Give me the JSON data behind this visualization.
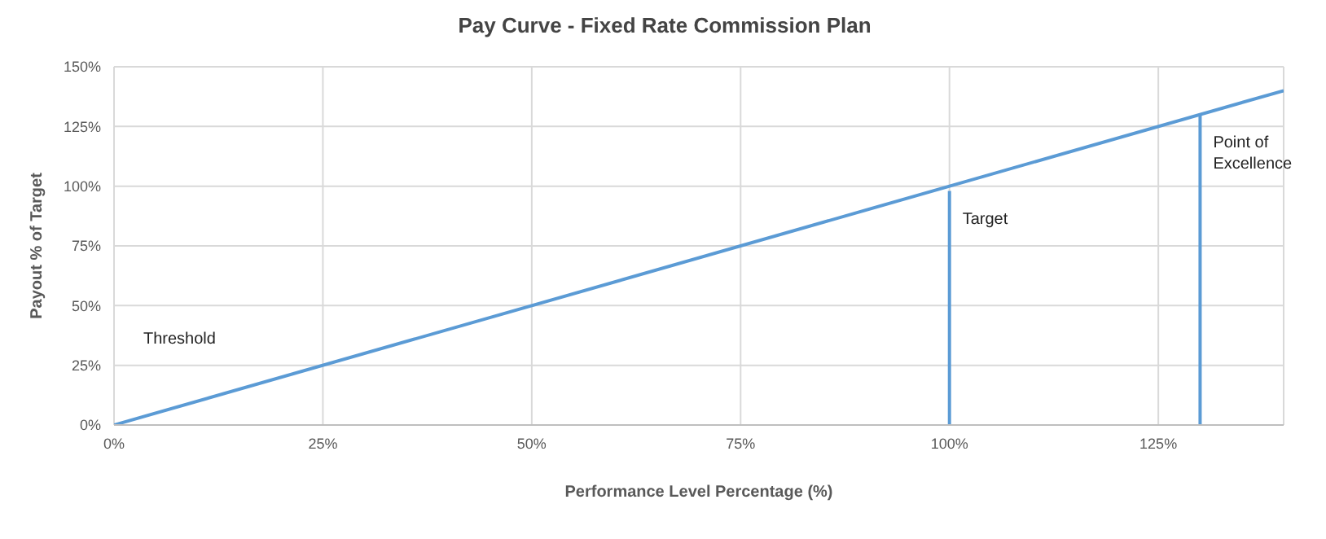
{
  "chart_data": {
    "type": "line",
    "title": "Pay Curve - Fixed Rate Commission Plan",
    "xlabel": "Performance Level Percentage (%)",
    "ylabel": "Payout % of Target",
    "series": [
      {
        "color": "#5b9bd5",
        "x": [
          0,
          140
        ],
        "values": [
          0,
          140
        ]
      },
      {
        "color": "#5b9bd5",
        "x": [
          100,
          100
        ],
        "values": [
          0,
          98
        ]
      },
      {
        "color": "#5b9bd5",
        "x": [
          130,
          130
        ],
        "values": [
          0,
          130
        ]
      }
    ],
    "xlim": [
      0,
      140
    ],
    "xticks": [
      {
        "value": 0,
        "label": "0%"
      },
      {
        "value": 25,
        "label": "25%"
      },
      {
        "value": 50,
        "label": "50%"
      },
      {
        "value": 75,
        "label": "75%"
      },
      {
        "value": 100,
        "label": "100%"
      },
      {
        "value": 125,
        "label": "125%"
      }
    ],
    "ylim": [
      0,
      150
    ],
    "yticks": [
      {
        "value": 0,
        "label": "0%"
      },
      {
        "value": 25,
        "label": "25%"
      },
      {
        "value": 50,
        "label": "50%"
      },
      {
        "value": 75,
        "label": "75%"
      },
      {
        "value": 100,
        "label": "100%"
      },
      {
        "value": 125,
        "label": "125%"
      },
      {
        "value": 150,
        "label": "150%"
      }
    ],
    "grid": true,
    "marker": "none",
    "line_style": "solid",
    "annotations": [
      "Threshold",
      {
        "text": "Target",
        "x": 100,
        "y": 98
      },
      {
        "text": "Point of Excellence",
        "x": 130,
        "y": 130
      }
    ]
  }
}
